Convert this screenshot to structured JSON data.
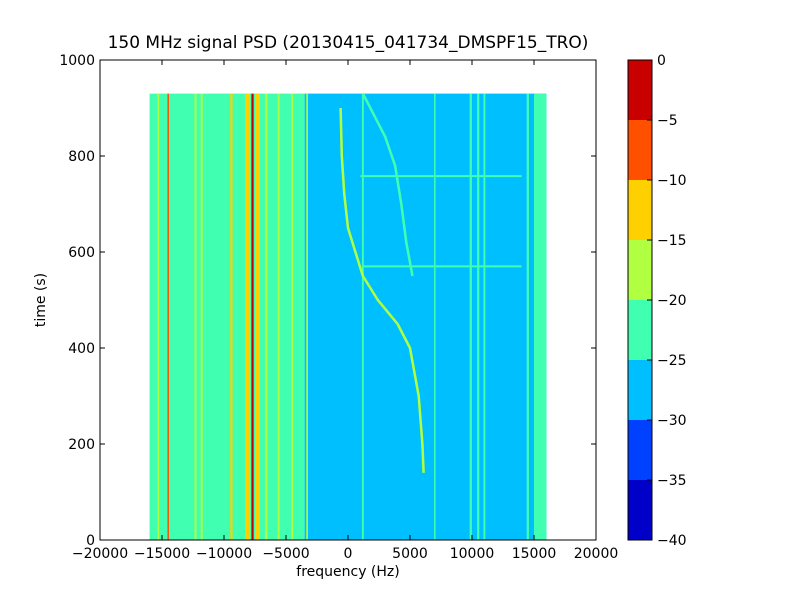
{
  "chart_data": {
    "type": "heatmap",
    "title": "150 MHz signal PSD (20130415_041734_DMSPF15_TRO)",
    "xlabel": "frequency (Hz)",
    "ylabel": "time (s)",
    "xlim": [
      -20000,
      20000
    ],
    "ylim": [
      0,
      1000
    ],
    "x_ticks": [
      -20000,
      -15000,
      -10000,
      -5000,
      0,
      5000,
      10000,
      15000,
      20000
    ],
    "x_tick_labels": [
      "−20000",
      "−15000",
      "−10000",
      "−5000",
      "0",
      "5000",
      "10000",
      "15000",
      "20000"
    ],
    "y_ticks": [
      0,
      200,
      400,
      600,
      800,
      1000
    ],
    "y_tick_labels": [
      "0",
      "200",
      "400",
      "600",
      "800",
      "1000"
    ],
    "data_extent": {
      "x": [
        -16000,
        16000
      ],
      "y": [
        0,
        930
      ]
    },
    "colorbar": {
      "range": [
        -40,
        0
      ],
      "ticks": [
        0,
        -5,
        -10,
        -15,
        -20,
        -25,
        -30,
        -35,
        -40
      ],
      "tick_labels": [
        "0",
        "−5",
        "−10",
        "−15",
        "−20",
        "−25",
        "−30",
        "−35",
        "−40"
      ],
      "levels": [
        {
          "from": -40,
          "to": -35,
          "color": "#0000c8"
        },
        {
          "from": -35,
          "to": -30,
          "color": "#0040ff"
        },
        {
          "from": -30,
          "to": -25,
          "color": "#00bfff"
        },
        {
          "from": -25,
          "to": -20,
          "color": "#40ffb0"
        },
        {
          "from": -20,
          "to": -15,
          "color": "#b0ff40"
        },
        {
          "from": -15,
          "to": -10,
          "color": "#ffd000"
        },
        {
          "from": -10,
          "to": -5,
          "color": "#ff5000"
        },
        {
          "from": -5,
          "to": 0,
          "color": "#c80000"
        }
      ]
    },
    "bands": [
      {
        "x": [
          -16000,
          -3500
        ],
        "y": [
          0,
          930
        ],
        "level": -22.5
      },
      {
        "x": [
          -3500,
          1200
        ],
        "y": [
          0,
          930
        ],
        "level": -27.5
      },
      {
        "x": [
          1200,
          16000
        ],
        "y": [
          0,
          930
        ],
        "level": -27.5
      },
      {
        "x": [
          15000,
          16000
        ],
        "y": [
          0,
          930
        ],
        "level": -22.5
      }
    ],
    "vertical_lines": [
      {
        "x": -14500,
        "y": [
          0,
          930
        ],
        "level": -7.5,
        "width_hz": 120
      },
      {
        "x": -15300,
        "y": [
          0,
          930
        ],
        "level": -17.5,
        "width_hz": 150
      },
      {
        "x": -12300,
        "y": [
          0,
          930
        ],
        "level": -17.5,
        "width_hz": 160
      },
      {
        "x": -11800,
        "y": [
          0,
          930
        ],
        "level": -17.5,
        "width_hz": 160
      },
      {
        "x": -9400,
        "y": [
          0,
          930
        ],
        "level": -12.5,
        "width_hz": 180
      },
      {
        "x": -8100,
        "y": [
          0,
          930
        ],
        "level": -12.5,
        "width_hz": 400
      },
      {
        "x": -7700,
        "y": [
          0,
          930
        ],
        "level": -2.5,
        "width_hz": 180
      },
      {
        "x": -7300,
        "y": [
          0,
          930
        ],
        "level": -12.5,
        "width_hz": 400
      },
      {
        "x": -6600,
        "y": [
          0,
          930
        ],
        "level": -17.5,
        "width_hz": 200
      },
      {
        "x": -5600,
        "y": [
          0,
          930
        ],
        "level": -17.5,
        "width_hz": 150
      },
      {
        "x": -4500,
        "y": [
          0,
          930
        ],
        "level": -17.5,
        "width_hz": 150
      },
      {
        "x": -3300,
        "y": [
          0,
          930
        ],
        "level": -17.5,
        "width_hz": 130
      },
      {
        "x": 1200,
        "y": [
          0,
          930
        ],
        "level": -22.5,
        "width_hz": 150
      },
      {
        "x": 7000,
        "y": [
          0,
          930
        ],
        "level": -22.5,
        "width_hz": 100
      },
      {
        "x": 9900,
        "y": [
          0,
          930
        ],
        "level": -22.5,
        "width_hz": 180
      },
      {
        "x": 10500,
        "y": [
          0,
          930
        ],
        "level": -22.5,
        "width_hz": 180
      },
      {
        "x": 11000,
        "y": [
          0,
          930
        ],
        "level": -22.5,
        "width_hz": 150
      },
      {
        "x": 14500,
        "y": [
          0,
          930
        ],
        "level": -22.5,
        "width_hz": 180
      },
      {
        "x": 15500,
        "y": [
          0,
          930
        ],
        "level": -22.5,
        "width_hz": 150
      }
    ],
    "horizontal_lines": [
      {
        "y": 570,
        "x": [
          1200,
          14000
        ],
        "level": -22.5
      },
      {
        "y": 758,
        "x": [
          1000,
          14000
        ],
        "level": -22.5
      }
    ],
    "signal_traces": [
      {
        "level": -17.5,
        "points": [
          [
            6100,
            140
          ],
          [
            6000,
            200
          ],
          [
            5700,
            300
          ],
          [
            5000,
            400
          ],
          [
            4000,
            450
          ],
          [
            2400,
            500
          ],
          [
            1200,
            550
          ],
          [
            600,
            600
          ],
          [
            0,
            650
          ],
          [
            -300,
            720
          ],
          [
            -500,
            800
          ],
          [
            -600,
            900
          ]
        ]
      },
      {
        "level": -22.5,
        "points": [
          [
            1200,
            930
          ],
          [
            2200,
            880
          ],
          [
            3000,
            840
          ],
          [
            3800,
            780
          ],
          [
            4300,
            700
          ],
          [
            4700,
            620
          ],
          [
            5200,
            550
          ]
        ]
      }
    ]
  }
}
